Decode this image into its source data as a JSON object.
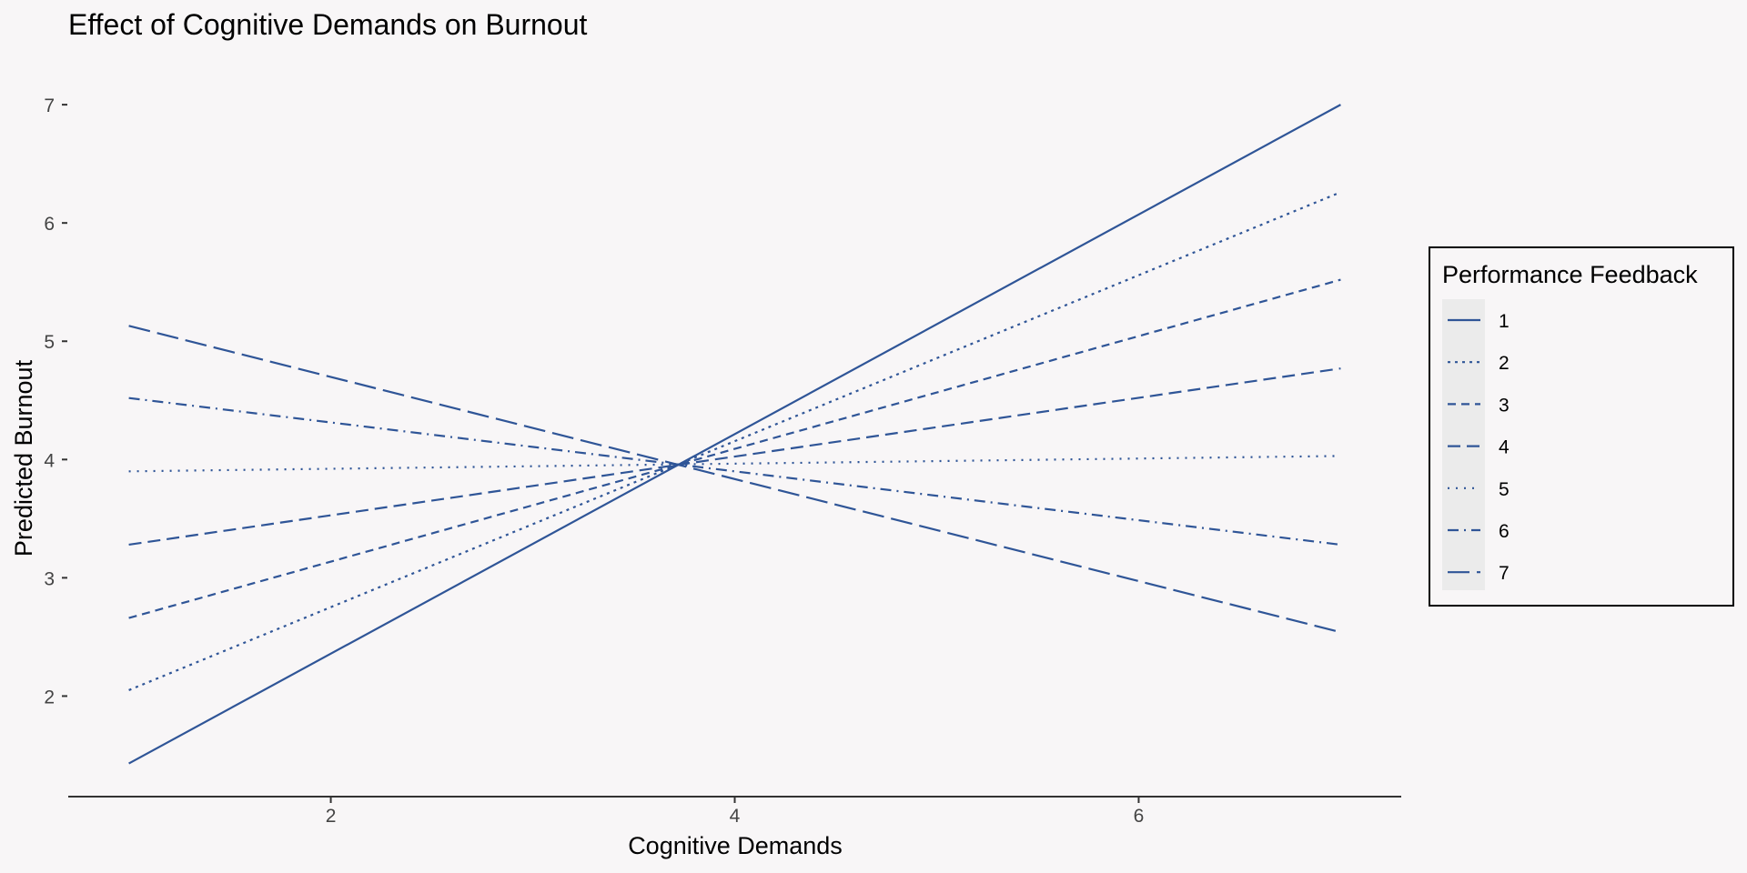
{
  "chart_data": {
    "type": "line",
    "title": "Effect of Cognitive Demands on Burnout",
    "xlabel": "Cognitive Demands",
    "ylabel": "Predicted Burnout",
    "x": [
      1,
      7
    ],
    "xlim": [
      0.7,
      7.3
    ],
    "ylim": [
      1.15,
      7.17
    ],
    "xticks": [
      2,
      4,
      6
    ],
    "yticks": [
      2,
      3,
      4,
      5,
      6,
      7
    ],
    "grid": false,
    "legend": {
      "title": "Performance Feedback",
      "position": "right"
    },
    "line_color": "#2f5597",
    "series": [
      {
        "name": "1",
        "values": [
          1.43,
          7.0
        ],
        "linestyle": "solid"
      },
      {
        "name": "2",
        "values": [
          2.05,
          6.26
        ],
        "linestyle": "dotted"
      },
      {
        "name": "3",
        "values": [
          2.66,
          5.52
        ],
        "linestyle": "dashed-short"
      },
      {
        "name": "4",
        "values": [
          3.28,
          4.77
        ],
        "linestyle": "dashed"
      },
      {
        "name": "5",
        "values": [
          3.9,
          4.03
        ],
        "linestyle": "dotted-fine"
      },
      {
        "name": "6",
        "values": [
          4.52,
          3.28
        ],
        "linestyle": "dashdot"
      },
      {
        "name": "7",
        "values": [
          5.13,
          2.54
        ],
        "linestyle": "longdash"
      }
    ]
  }
}
